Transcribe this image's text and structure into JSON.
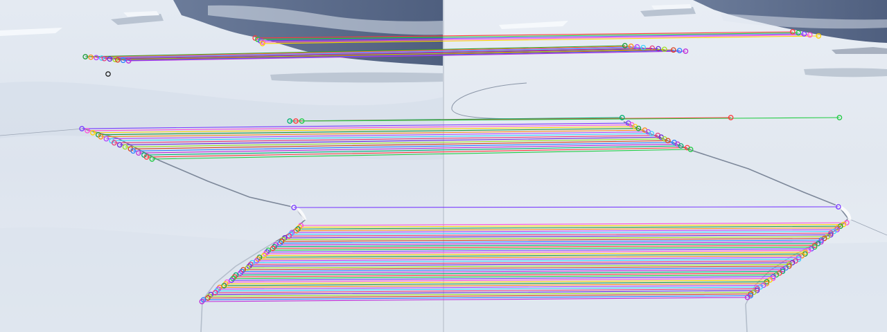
{
  "scene": {
    "description_kind": "feature-matching visualization of two aerial snow photographs",
    "palette": {
      "snow_light": "#eef2f8",
      "snow_mid": "#dfe6ef",
      "snow_shadow": "#c7d0dd",
      "ice_dark": "#4a5d7a",
      "ice_deep": "#2f3f5c",
      "crack": "#7c8799",
      "divider": "#c9d0da"
    }
  },
  "match_colors": [
    "#ff3b3b",
    "#22cc44",
    "#7a3cff",
    "#ff4fd8",
    "#ffd400",
    "#1f9d3a",
    "#ff8c1a",
    "#b040ff",
    "#3ad1ff",
    "#e63a7a",
    "#6a2bd9",
    "#a0e020",
    "#d94020",
    "#2a7fff",
    "#c02ad9",
    "#00b070"
  ]
}
